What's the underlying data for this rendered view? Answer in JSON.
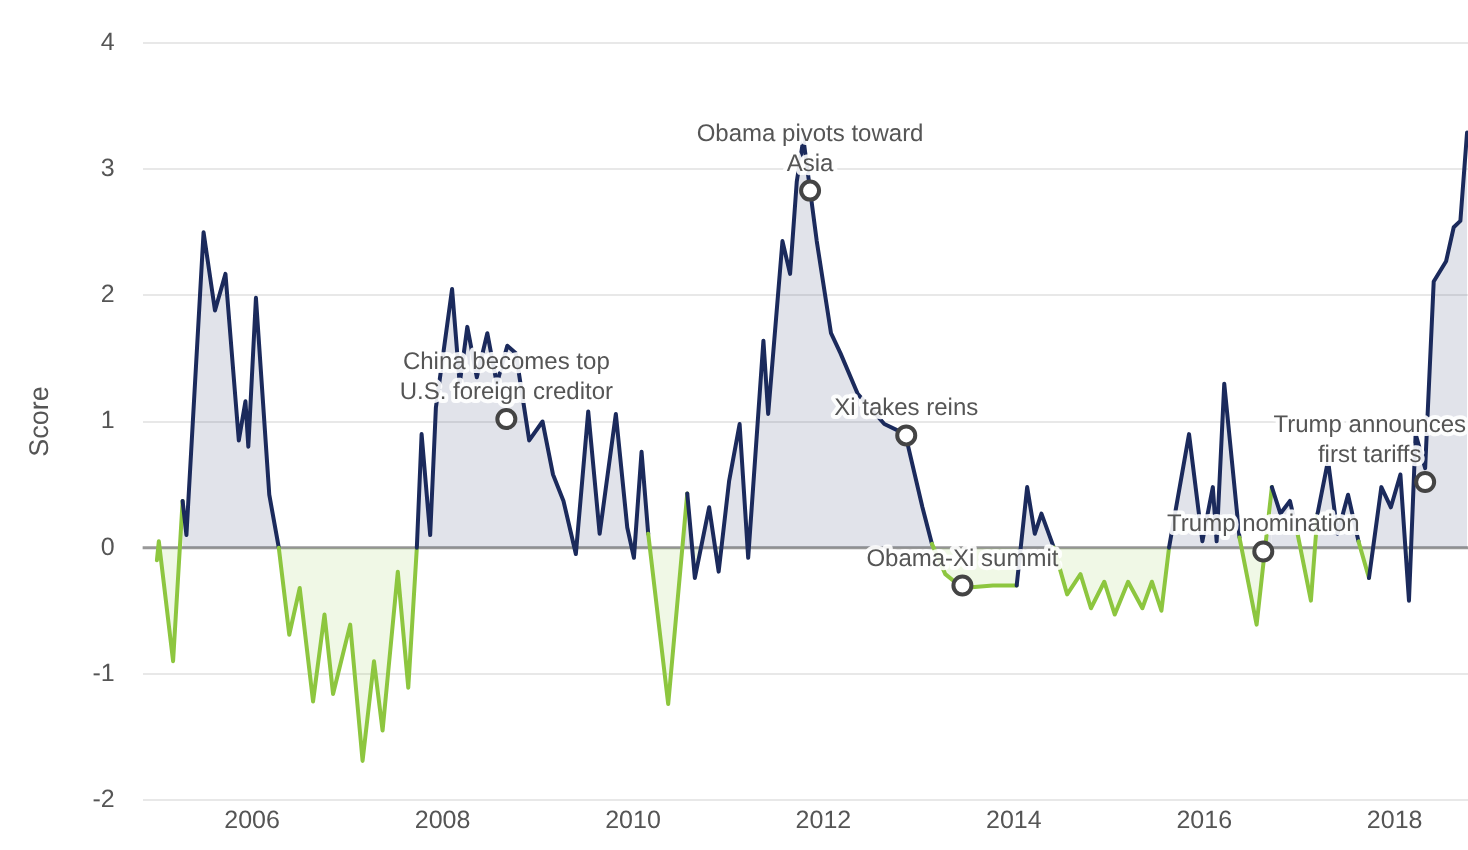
{
  "chart_data": {
    "type": "area",
    "ylabel": "Score",
    "x": [
      2005.0,
      2005.02,
      2005.17,
      2005.27,
      2005.31,
      2005.49,
      2005.61,
      2005.72,
      2005.86,
      2005.93,
      2005.96,
      2006.04,
      2006.18,
      2006.28,
      2006.39,
      2006.5,
      2006.64,
      2006.76,
      2006.85,
      2007.03,
      2007.16,
      2007.28,
      2007.37,
      2007.53,
      2007.64,
      2007.73,
      2007.78,
      2007.87,
      2007.93,
      2008.1,
      2008.18,
      2008.26,
      2008.36,
      2008.47,
      2008.57,
      2008.68,
      2008.77,
      2008.91,
      2009.05,
      2009.16,
      2009.27,
      2009.4,
      2009.53,
      2009.65,
      2009.82,
      2009.94,
      2010.01,
      2010.09,
      2010.16,
      2010.37,
      2010.57,
      2010.65,
      2010.8,
      2010.9,
      2011.01,
      2011.12,
      2011.21,
      2011.37,
      2011.42,
      2011.57,
      2011.65,
      2011.72,
      2011.79,
      2011.93,
      2012.08,
      2012.18,
      2012.36,
      2012.64,
      2012.86,
      2013.04,
      2013.14,
      2013.28,
      2013.46,
      2013.78,
      2014.03,
      2014.14,
      2014.22,
      2014.29,
      2014.42,
      2014.56,
      2014.7,
      2014.81,
      2014.95,
      2015.06,
      2015.2,
      2015.35,
      2015.45,
      2015.55,
      2015.63,
      2015.84,
      2015.98,
      2016.09,
      2016.13,
      2016.21,
      2016.37,
      2016.55,
      2016.71,
      2016.8,
      2016.9,
      2016.98,
      2017.12,
      2017.19,
      2017.3,
      2017.4,
      2017.51,
      2017.62,
      2017.73,
      2017.86,
      2017.96,
      2018.06,
      2018.15,
      2018.22,
      2018.32,
      2018.41,
      2018.54,
      2018.62,
      2018.69,
      2018.76
    ],
    "series": [
      {
        "values": [
          -0.1,
          0.05,
          -0.9,
          0.37,
          0.1,
          2.5,
          1.88,
          2.17,
          0.85,
          1.16,
          0.8,
          1.98,
          0.42,
          0,
          -0.69,
          -0.32,
          -1.22,
          -0.53,
          -1.16,
          -0.61,
          -1.69,
          -0.9,
          -1.45,
          -0.19,
          -1.11,
          0,
          0.9,
          0.1,
          1.11,
          2.05,
          1.3,
          1.75,
          1.35,
          1.7,
          1.3,
          1.6,
          1.54,
          0.85,
          1.0,
          0.58,
          0.37,
          -0.05,
          1.08,
          0.11,
          1.06,
          0.16,
          -0.08,
          0.76,
          0.11,
          -1.24,
          0.43,
          -0.24,
          0.32,
          -0.19,
          0.53,
          0.98,
          -0.08,
          1.64,
          1.06,
          2.43,
          2.17,
          2.9,
          3.24,
          2.43,
          1.7,
          1.54,
          1.22,
          0.98,
          0.9,
          0.32,
          0.03,
          -0.21,
          -0.32,
          -0.3,
          -0.3,
          0.48,
          0.11,
          0.27,
          0,
          -0.37,
          -0.21,
          -0.48,
          -0.27,
          -0.53,
          -0.27,
          -0.48,
          -0.27,
          -0.5,
          0,
          0.9,
          0.05,
          0.48,
          0.05,
          1.3,
          0.08,
          -0.61,
          0.48,
          0.27,
          0.37,
          0.11,
          -0.42,
          0.27,
          0.69,
          0.11,
          0.42,
          0.05,
          -0.24,
          0.48,
          0.32,
          0.58,
          -0.42,
          0.9,
          0.63,
          2.11,
          2.27,
          2.54,
          2.59,
          3.29
        ],
        "colors": [
          "#8dc63f",
          "#1b2a5c",
          "#8dc63f",
          "#1b2a5c",
          "#1b2a5c",
          "#1b2a5c",
          "#1b2a5c",
          "#1b2a5c",
          "#1b2a5c",
          "#1b2a5c",
          "#1b2a5c",
          "#1b2a5c",
          "#1b2a5c",
          "#1b2a5c",
          "#8dc63f",
          "#8dc63f",
          "#8dc63f",
          "#8dc63f",
          "#8dc63f",
          "#8dc63f",
          "#8dc63f",
          "#8dc63f",
          "#8dc63f",
          "#8dc63f",
          "#8dc63f",
          "#1b2a5c",
          "#1b2a5c",
          "#1b2a5c",
          "#1b2a5c",
          "#1b2a5c",
          "#1b2a5c",
          "#1b2a5c",
          "#1b2a5c",
          "#1b2a5c",
          "#1b2a5c",
          "#1b2a5c",
          "#1b2a5c",
          "#1b2a5c",
          "#1b2a5c",
          "#1b2a5c",
          "#1b2a5c",
          "#8dc63f",
          "#1b2a5c",
          "#1b2a5c",
          "#1b2a5c",
          "#1b2a5c",
          "#8dc63f",
          "#1b2a5c",
          "#1b2a5c",
          "#8dc63f",
          "#1b2a5c",
          "#8dc63f",
          "#1b2a5c",
          "#8dc63f",
          "#1b2a5c",
          "#1b2a5c",
          "#8dc63f",
          "#1b2a5c",
          "#1b2a5c",
          "#1b2a5c",
          "#1b2a5c",
          "#1b2a5c",
          "#1b2a5c",
          "#1b2a5c",
          "#1b2a5c",
          "#1b2a5c",
          "#1b2a5c",
          "#1b2a5c",
          "#1b2a5c",
          "#1b2a5c",
          "#1b2a5c",
          "#8dc63f",
          "#8dc63f",
          "#8dc63f",
          "#8dc63f",
          "#1b2a5c",
          "#1b2a5c",
          "#1b2a5c",
          "#1b2a5c",
          "#8dc63f",
          "#8dc63f",
          "#8dc63f",
          "#8dc63f",
          "#8dc63f",
          "#8dc63f",
          "#8dc63f",
          "#8dc63f",
          "#8dc63f",
          "#1b2a5c",
          "#1b2a5c",
          "#1b2a5c",
          "#1b2a5c",
          "#1b2a5c",
          "#1b2a5c",
          "#1b2a5c",
          "#8dc63f",
          "#1b2a5c",
          "#1b2a5c",
          "#1b2a5c",
          "#1b2a5c",
          "#8dc63f",
          "#1b2a5c",
          "#1b2a5c",
          "#1b2a5c",
          "#1b2a5c",
          "#1b2a5c",
          "#8dc63f",
          "#1b2a5c",
          "#1b2a5c",
          "#1b2a5c",
          "#8dc63f",
          "#1b2a5c",
          "#1b2a5c",
          "#1b2a5c",
          "#1b2a5c",
          "#1b2a5c",
          "#1b2a5c",
          "#1b2a5c"
        ]
      }
    ],
    "xlim": [
      2004.85,
      2018.77
    ],
    "xticks": [
      2006,
      2008,
      2010,
      2012,
      2014,
      2016,
      2018
    ],
    "ylim": [
      -2,
      4
    ],
    "yticks": [
      -2,
      -1,
      0,
      1,
      2,
      3,
      4
    ],
    "grid": "y",
    "legend": false,
    "marker": "none",
    "line_style": "solid",
    "ref_lines": [
      {
        "axis": "y",
        "value": 0,
        "color": "#999999"
      }
    ],
    "annotations": [
      {
        "text": "China becomes top U.S. foreign creditor",
        "x": 2008.67,
        "y": 1.02
      },
      {
        "text": "Obama pivots toward Asia",
        "x": 2011.86,
        "y": 2.83
      },
      {
        "text": "Xi takes reins",
        "x": 2012.87,
        "y": 0.89
      },
      {
        "text": "Obama-Xi summit",
        "x": 2013.46,
        "y": -0.3
      },
      {
        "text": "Trump nomination",
        "x": 2016.62,
        "y": -0.03
      },
      {
        "text": "Trump announces first tariffs",
        "x": 2018.32,
        "y": 0.52
      }
    ]
  }
}
